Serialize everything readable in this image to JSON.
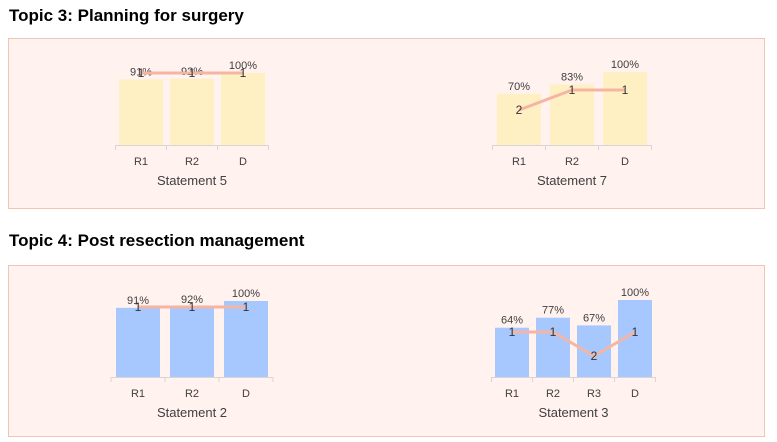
{
  "topics": [
    {
      "title": "Topic 3: Planning for surgery"
    },
    {
      "title": "Topic 4: Post resection management"
    }
  ],
  "chart_data": [
    {
      "type": "bar",
      "title": "Statement 5",
      "categories": [
        "R1",
        "R2",
        "D"
      ],
      "series": [
        {
          "values": [
            91,
            92,
            100
          ],
          "labels": [
            "91%",
            "92%",
            "100%"
          ]
        },
        {
          "type": "line",
          "values": [
            1,
            1,
            1
          ],
          "labels": [
            "1",
            "1",
            "1"
          ]
        }
      ],
      "ylim": [
        0,
        100
      ],
      "colors": {
        "bar": "#fff0c4",
        "line": "#f5b5a3"
      }
    },
    {
      "type": "bar",
      "title": "Statement 7",
      "categories": [
        "R1",
        "R2",
        "D"
      ],
      "series": [
        {
          "values": [
            70,
            83,
            100
          ],
          "labels": [
            "70%",
            "83%",
            "100%"
          ]
        },
        {
          "type": "line",
          "values": [
            2,
            1,
            1
          ],
          "labels": [
            "2",
            "1",
            "1"
          ]
        }
      ],
      "ylim": [
        0,
        100
      ],
      "colors": {
        "bar": "#fff0c4",
        "line": "#f5b5a3"
      }
    },
    {
      "type": "bar",
      "title": "Statement 2",
      "categories": [
        "R1",
        "R2",
        "D"
      ],
      "series": [
        {
          "values": [
            91,
            92,
            100
          ],
          "labels": [
            "91%",
            "92%",
            "100%"
          ]
        },
        {
          "type": "line",
          "values": [
            1,
            1,
            1
          ],
          "labels": [
            "1",
            "1",
            "1"
          ]
        }
      ],
      "ylim": [
        0,
        100
      ],
      "colors": {
        "bar": "#a7c8ff",
        "line": "#f5b5a3"
      }
    },
    {
      "type": "bar",
      "title": "Statement 3",
      "categories": [
        "R1",
        "R2",
        "R3",
        "D"
      ],
      "series": [
        {
          "values": [
            64,
            77,
            67,
            100
          ],
          "labels": [
            "64%",
            "77%",
            "67%",
            "100%"
          ]
        },
        {
          "type": "line",
          "values": [
            1,
            1,
            2,
            1
          ],
          "labels": [
            "1",
            "1",
            "2",
            "1"
          ]
        }
      ],
      "ylim": [
        0,
        100
      ],
      "colors": {
        "bar": "#a7c8ff",
        "line": "#f5b5a3"
      }
    }
  ]
}
